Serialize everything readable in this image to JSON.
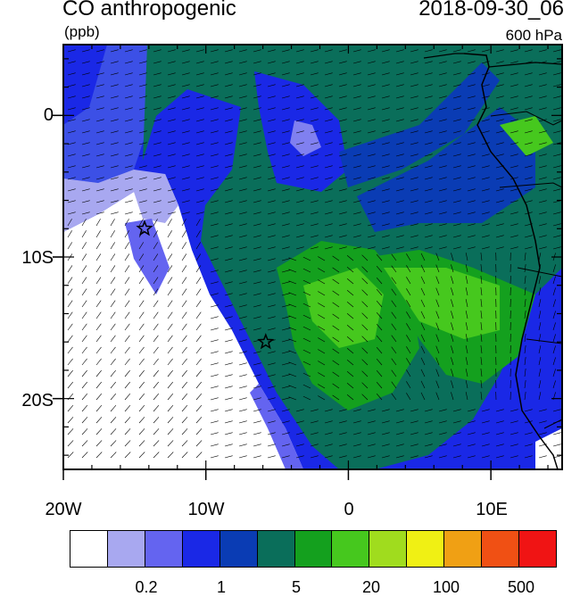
{
  "title": {
    "variable": "CO anthropogenic",
    "units": "(ppb)",
    "datetime": "2018-09-30_06",
    "level": "600 hPa"
  },
  "axes": {
    "x_labels": [
      "20W",
      "10W",
      "0",
      "10E"
    ],
    "y_labels": [
      "0",
      "10S",
      "20S"
    ],
    "lon_range": [
      -20,
      15
    ],
    "lat_range": [
      -25,
      5
    ]
  },
  "colorbar": {
    "colors": [
      "#ffffff",
      "#a8a8f0",
      "#6464f0",
      "#1a28e6",
      "#0a3cb4",
      "#0a6e5a",
      "#14a01e",
      "#46c81e",
      "#a0dc1e",
      "#f0f014",
      "#f0a014",
      "#f05014",
      "#f01414"
    ],
    "labels": [
      "0.2",
      "1",
      "5",
      "20",
      "100",
      "500"
    ]
  },
  "markers": [
    {
      "name": "star-1",
      "lon": -14.3,
      "lat": -8.0
    },
    {
      "name": "star-2",
      "lon": -5.8,
      "lat": -16.0
    }
  ]
}
